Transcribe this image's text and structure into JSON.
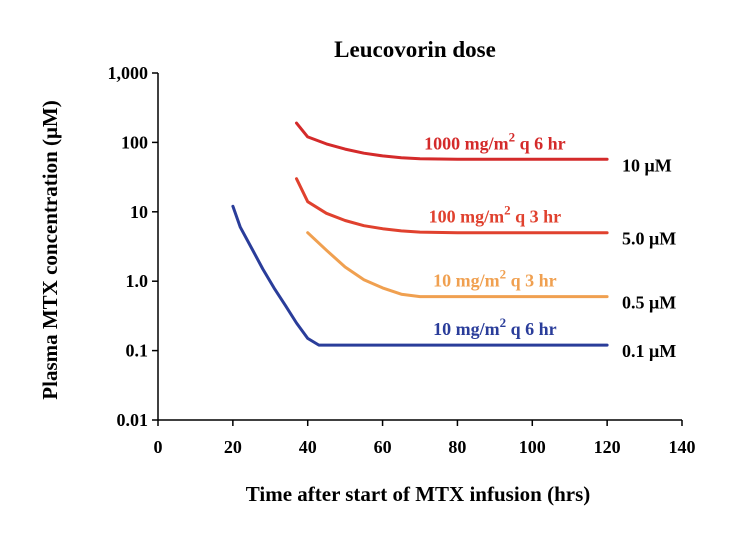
{
  "chart_data": {
    "type": "line",
    "title": "Leucovorin dose",
    "xlabel": "Time after start of MTX infusion (hrs)",
    "ylabel": "Plasma MTX concentration (μM)",
    "xlim": [
      0,
      140
    ],
    "ylim": [
      0.01,
      1000
    ],
    "yscale": "log",
    "grid": false,
    "xticks": [
      "0",
      "20",
      "40",
      "60",
      "80",
      "100",
      "120",
      "140"
    ],
    "yticks": [
      "1,000",
      "100",
      "10",
      "1.0",
      "0.1",
      "0.01"
    ],
    "series": [
      {
        "name": "1000 mg/m2 q 6 hr",
        "threshold": "10 μM",
        "color": "#d42a2a",
        "x": [
          37,
          40,
          45,
          50,
          55,
          60,
          65,
          70,
          80,
          100,
          120
        ],
        "y": [
          190,
          120,
          95,
          80,
          70,
          64,
          60,
          58,
          57,
          57,
          57
        ]
      },
      {
        "name": "100 mg/m2 q 3 hr",
        "threshold": "5.0 μM",
        "color": "#e0412e",
        "x": [
          37,
          40,
          45,
          50,
          55,
          60,
          65,
          70,
          80,
          100,
          120
        ],
        "y": [
          30,
          14,
          9.5,
          7.5,
          6.3,
          5.7,
          5.3,
          5.1,
          5.0,
          5.0,
          5.0
        ]
      },
      {
        "name": "10 mg/m2 q 3 hr",
        "threshold": "0.5 μM",
        "color": "#f0a050",
        "x": [
          40,
          45,
          50,
          55,
          60,
          65,
          70,
          80,
          100,
          120
        ],
        "y": [
          5,
          2.8,
          1.6,
          1.05,
          0.8,
          0.65,
          0.6,
          0.6,
          0.6,
          0.6
        ]
      },
      {
        "name": "10 mg/m2 q 6 hr",
        "threshold": "0.1 μM",
        "color": "#2a3d9a",
        "x": [
          20,
          22,
          25,
          28,
          31,
          34,
          37,
          40,
          43,
          60,
          80,
          100,
          120
        ],
        "y": [
          12,
          6,
          3,
          1.5,
          0.8,
          0.45,
          0.25,
          0.15,
          0.12,
          0.12,
          0.12,
          0.12,
          0.12
        ]
      }
    ]
  }
}
